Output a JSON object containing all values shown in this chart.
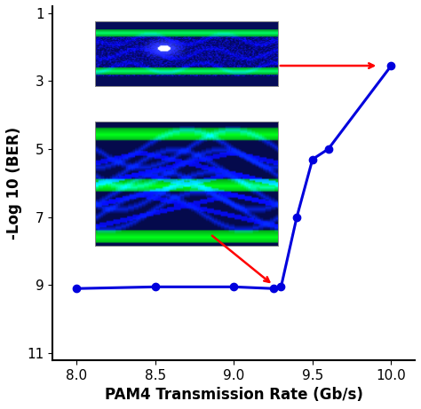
{
  "x": [
    8.0,
    8.5,
    9.0,
    9.25,
    9.3,
    9.4,
    9.5,
    9.6,
    10.0
  ],
  "y": [
    9.1,
    9.05,
    9.05,
    9.1,
    9.05,
    7.0,
    5.3,
    5.0,
    2.55
  ],
  "line_color": "#0000dd",
  "marker_color": "#0000dd",
  "xlabel": "PAM4 Transmission Rate (Gb/s)",
  "ylabel": "-Log 10 (BER)",
  "xlim": [
    7.85,
    10.15
  ],
  "ylim": [
    11.2,
    0.8
  ],
  "yticks": [
    1,
    3,
    5,
    7,
    9,
    11
  ],
  "xticks": [
    8.0,
    8.5,
    9.0,
    9.5,
    10.0
  ],
  "bg_color": "white",
  "inset1_xmin": 8.12,
  "inset1_xmax": 9.28,
  "inset1_ymin": 1.25,
  "inset1_ymax": 3.15,
  "inset2_xmin": 8.12,
  "inset2_xmax": 9.28,
  "inset2_ymin": 4.2,
  "inset2_ymax": 7.85,
  "arrow1_xtail": 9.28,
  "arrow1_ytail": 2.55,
  "arrow1_xhead": 9.92,
  "arrow1_yhead": 2.55,
  "arrow2_xtail": 8.85,
  "arrow2_ytail": 7.5,
  "arrow2_xhead": 9.25,
  "arrow2_yhead": 9.0
}
